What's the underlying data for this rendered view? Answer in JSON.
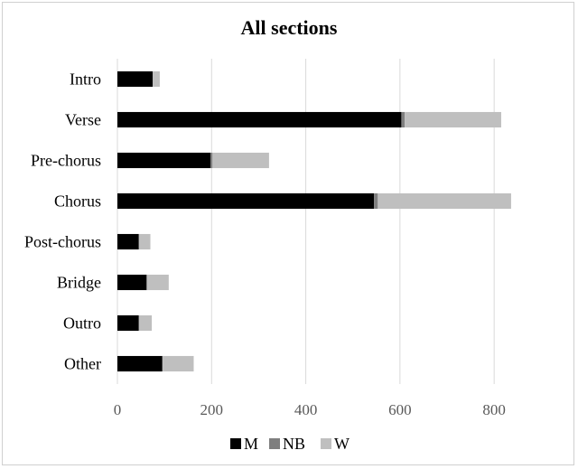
{
  "chart_data": {
    "type": "bar",
    "orientation": "horizontal",
    "stacked": true,
    "title": "All sections",
    "categories": [
      "Intro",
      "Verse",
      "Pre-chorus",
      "Chorus",
      "Post-chorus",
      "Bridge",
      "Outro",
      "Other"
    ],
    "series": [
      {
        "name": "M",
        "color": "#000000",
        "values": [
          75,
          603,
          198,
          545,
          45,
          62,
          45,
          95
        ]
      },
      {
        "name": "NB",
        "color": "#7f7f7f",
        "values": [
          0,
          7,
          4,
          8,
          1,
          1,
          1,
          1
        ]
      },
      {
        "name": "W",
        "color": "#bfbfbf",
        "values": [
          15,
          205,
          120,
          283,
          24,
          46,
          27,
          66
        ]
      }
    ],
    "xlim": [
      0,
      840
    ],
    "xticks": [
      0,
      200,
      400,
      600,
      800
    ],
    "grid": "vertical",
    "legend": "bottom"
  }
}
